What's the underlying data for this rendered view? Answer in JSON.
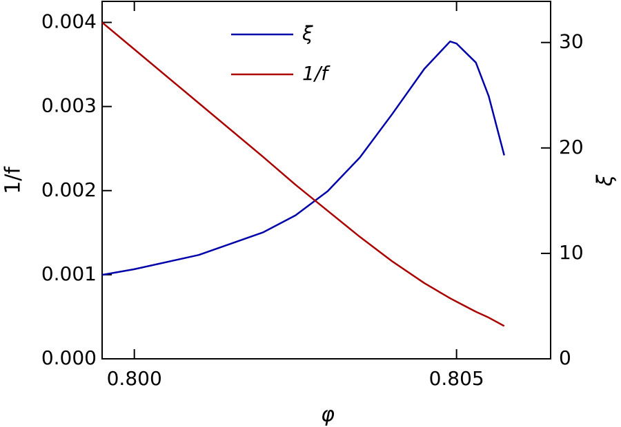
{
  "chart_data": {
    "type": "line",
    "xlabel": "φ",
    "ylabel": "1/f",
    "y2label": "ξ",
    "x": [
      0.7995,
      0.8,
      0.801,
      0.802,
      0.8025,
      0.803,
      0.8035,
      0.804,
      0.8045,
      0.8049,
      0.805,
      0.8053,
      0.8055,
      0.80574
    ],
    "series": [
      {
        "name": "ξ",
        "color": "#0000aa",
        "axis": "y2",
        "values": [
          7.96,
          8.5,
          9.85,
          12.0,
          13.6,
          15.9,
          19.1,
          23.2,
          27.5,
          30.1,
          29.9,
          28.1,
          24.9,
          19.3
        ]
      },
      {
        "name": "1/f",
        "color": "#aa0000",
        "values": [
          0.004,
          0.00368,
          0.00304,
          0.0024,
          0.00207,
          0.00176,
          0.00145,
          0.00116,
          0.0009,
          0.00072,
          0.00068,
          0.00056,
          0.00049,
          0.00039
        ]
      }
    ],
    "xlim": [
      0.7995,
      0.80646
    ],
    "xticks": [
      {
        "value": 0.8,
        "label": "0.800"
      },
      {
        "value": 0.805,
        "label": "0.805"
      }
    ],
    "ylim": [
      0,
      0.00425
    ],
    "yticks": [
      {
        "value": 0,
        "label": "0.000"
      },
      {
        "value": 0.001,
        "label": "0.001"
      },
      {
        "value": 0.002,
        "label": "0.002"
      },
      {
        "value": 0.003,
        "label": "0.003"
      },
      {
        "value": 0.004,
        "label": "0.004"
      }
    ],
    "y2lim": [
      0,
      33.9
    ],
    "y2ticks": [
      0,
      10,
      20,
      30
    ],
    "legend": "upper center"
  }
}
